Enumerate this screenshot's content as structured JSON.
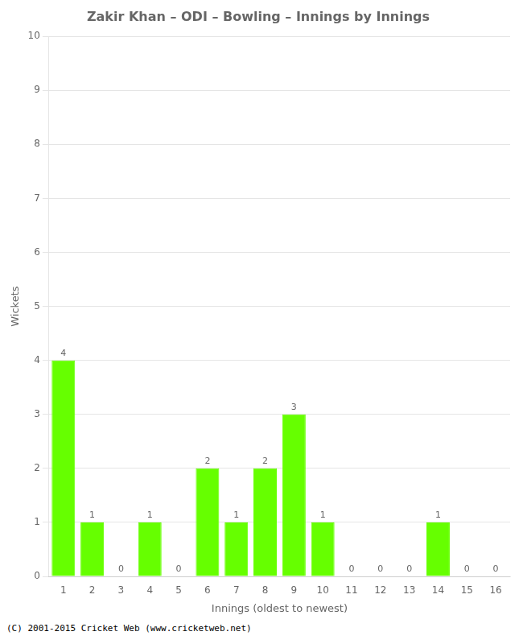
{
  "chart_data": {
    "type": "bar",
    "title": "Zakir Khan – ODI – Bowling – Innings by Innings",
    "x_label": "Innings (oldest to newest)",
    "y_label": "Wickets",
    "categories": [
      "1",
      "2",
      "3",
      "4",
      "5",
      "6",
      "7",
      "8",
      "9",
      "10",
      "11",
      "12",
      "13",
      "14",
      "15",
      "16"
    ],
    "values": [
      4,
      1,
      0,
      1,
      0,
      2,
      1,
      2,
      3,
      1,
      0,
      0,
      0,
      1,
      0,
      0
    ],
    "color": "#66ff00",
    "ylim": [
      0,
      10
    ],
    "yticks": [
      0,
      1,
      2,
      3,
      4,
      5,
      6,
      7,
      8,
      9,
      10
    ],
    "grid": "y",
    "data_labels": true,
    "annotations": [
      "(C) 2001-2015 Cricket Web (www.cricketweb.net)"
    ]
  }
}
